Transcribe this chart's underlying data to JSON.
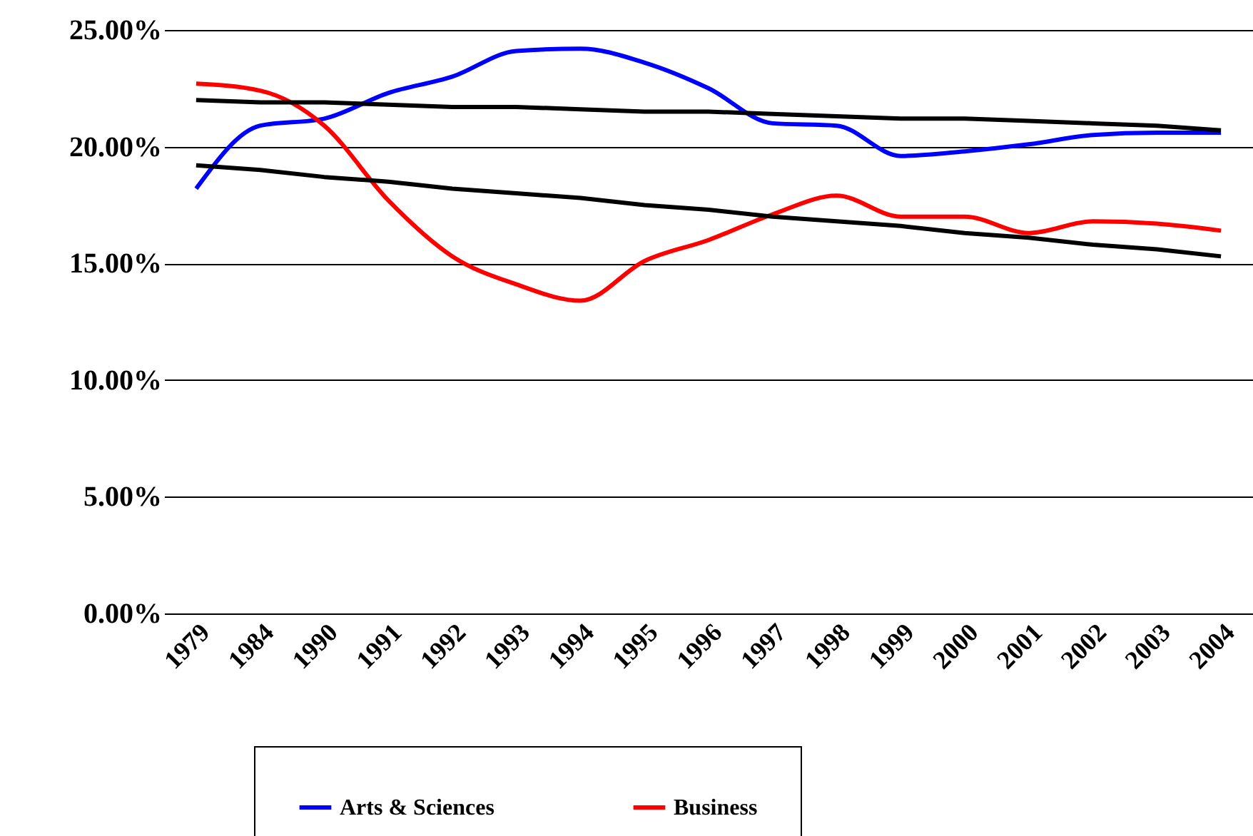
{
  "chart_data": {
    "type": "line",
    "categories": [
      "1979",
      "1984",
      "1990",
      "1991",
      "1992",
      "1993",
      "1994",
      "1995",
      "1996",
      "1997",
      "1998",
      "1999",
      "2000",
      "2001",
      "2002",
      "2003",
      "2004"
    ],
    "series": [
      {
        "name": "Arts & Sciences",
        "color": "#0000ff",
        "values": [
          18.2,
          20.9,
          21.2,
          22.3,
          23.0,
          24.1,
          24.2,
          23.6,
          22.5,
          21.0,
          20.9,
          19.6,
          19.8,
          20.1,
          20.5,
          20.6,
          20.6
        ]
      },
      {
        "name": "Business",
        "color": "#ff0000",
        "values": [
          22.7,
          22.4,
          20.9,
          17.7,
          15.3,
          14.1,
          13.4,
          15.1,
          16.0,
          17.1,
          17.9,
          17.0,
          17.0,
          16.3,
          16.8,
          16.7,
          16.4
        ]
      },
      {
        "type": "line",
        "color": "#000000",
        "values": [
          22.0,
          21.9,
          21.9,
          21.8,
          21.7,
          21.7,
          21.6,
          21.5,
          21.5,
          21.4,
          21.3,
          21.2,
          21.2,
          21.1,
          21.0,
          20.9,
          20.7
        ]
      },
      {
        "type": "line",
        "color": "#000000",
        "values": [
          19.2,
          19.0,
          18.7,
          18.5,
          18.2,
          18.0,
          17.8,
          17.5,
          17.3,
          17.0,
          16.8,
          16.6,
          16.3,
          16.1,
          15.8,
          15.6,
          15.3
        ]
      }
    ],
    "ylim": [
      0,
      25
    ],
    "yticks": [
      {
        "value": 0,
        "label": "0.00%"
      },
      {
        "value": 5,
        "label": "5.00%"
      },
      {
        "value": 10,
        "label": "10.00%"
      },
      {
        "value": 15,
        "label": "15.00%"
      },
      {
        "value": 20,
        "label": "20.00%"
      },
      {
        "value": 25,
        "label": "25.00%"
      }
    ],
    "grid": "y",
    "legend": "bottom"
  }
}
